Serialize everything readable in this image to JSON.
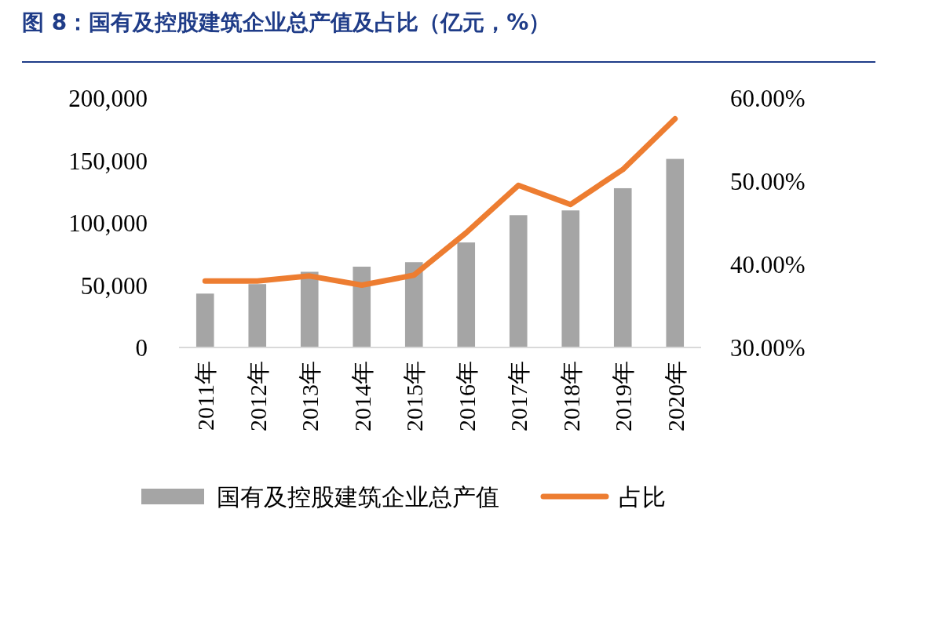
{
  "chart_data": {
    "type": "bar",
    "title": "图 8：国有及控股建筑企业总产值及占比（亿元，%）",
    "categories": [
      "2011年",
      "2012年",
      "2013年",
      "2014年",
      "2015年",
      "2016年",
      "2017年",
      "2018年",
      "2019年",
      "2020年"
    ],
    "series": [
      {
        "name": "国有及控股建筑企业总产值",
        "color": "#a5a5a5",
        "values": [
          43200,
          50800,
          60700,
          64800,
          68400,
          84200,
          106100,
          109900,
          127700,
          151200
        ]
      },
      {
        "name": "占比",
        "type": "line",
        "axis": "y2",
        "color": "#ed7d31",
        "values": [
          38.0,
          38.0,
          38.6,
          37.5,
          38.7,
          43.8,
          49.5,
          47.2,
          51.4,
          57.5
        ]
      }
    ],
    "ylim": [
      0,
      200000
    ],
    "yticks": [
      0,
      {
        "value": 50000,
        "label": "50,000"
      },
      {
        "value": 100000,
        "label": "100,000"
      },
      {
        "value": 150000,
        "label": "150,000"
      },
      {
        "value": 200000,
        "label": "200,000"
      }
    ],
    "y2lim": [
      30,
      60
    ],
    "y2ticks": [
      {
        "value": 30,
        "label": "30.00%"
      },
      {
        "value": 40,
        "label": "40.00%"
      },
      {
        "value": 50,
        "label": "50.00%"
      },
      {
        "value": 60,
        "label": "60.00%"
      }
    ],
    "legend": "bottom",
    "grid": false
  }
}
